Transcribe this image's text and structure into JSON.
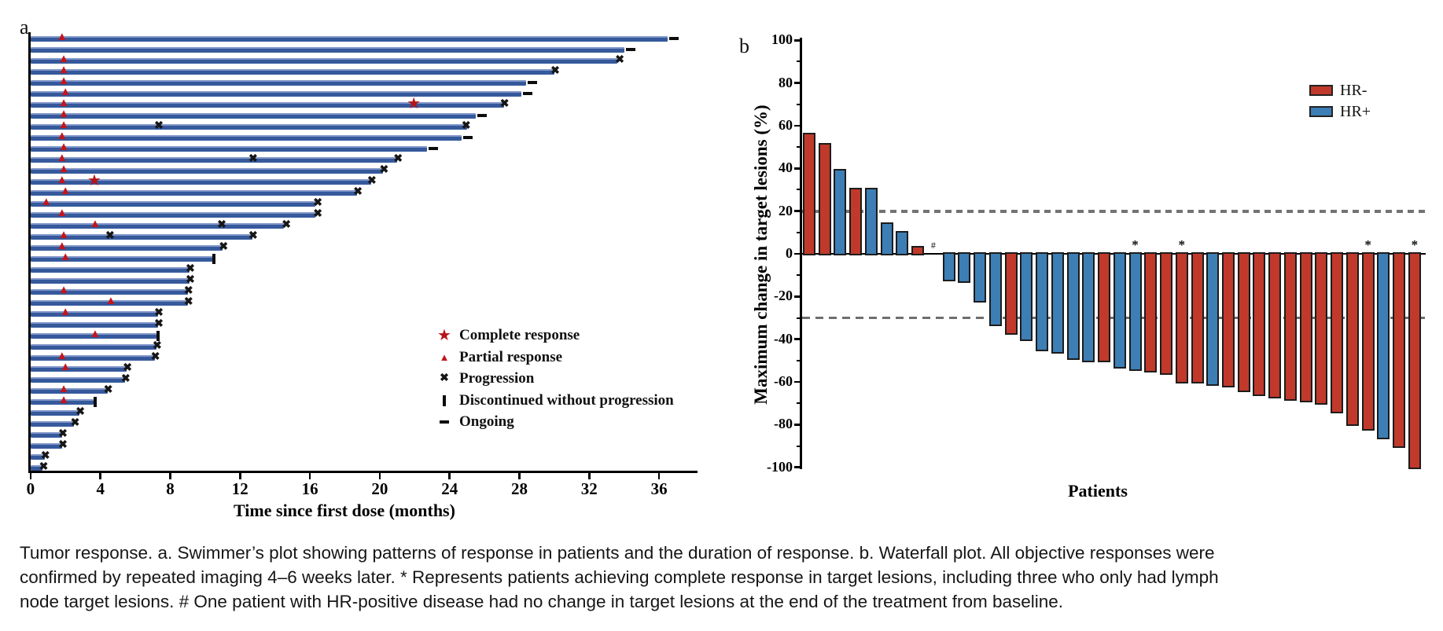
{
  "figure": {
    "panel_a_label": "a",
    "panel_b_label": "b"
  },
  "chart_data": [
    {
      "type": "swimmer",
      "panel": "a",
      "xlabel": "Time since first dose (months)",
      "x_ticks": [
        0,
        4,
        8,
        12,
        16,
        20,
        24,
        28,
        32,
        36
      ],
      "xlim": [
        0,
        38
      ],
      "legend": [
        {
          "symbol": "star",
          "label": "Complete response"
        },
        {
          "symbol": "triangle",
          "label": "Partial response"
        },
        {
          "symbol": "x",
          "label": "Progression"
        },
        {
          "symbol": "bar",
          "label": "Discontinued without progression"
        },
        {
          "symbol": "dash",
          "label": "Ongoing"
        }
      ],
      "patients": [
        {
          "duration": 36.5,
          "triangle": 1.8,
          "ongoing": true
        },
        {
          "duration": 34.0,
          "ongoing": true
        },
        {
          "duration": 33.6,
          "triangle": 1.9,
          "x": [
            33.8
          ]
        },
        {
          "duration": 30.0,
          "triangle": 1.9,
          "x": [
            30.1
          ]
        },
        {
          "duration": 28.4,
          "triangle": 1.9,
          "ongoing": true
        },
        {
          "duration": 28.1,
          "triangle": 2.0,
          "ongoing": true
        },
        {
          "duration": 27.1,
          "triangle": 1.9,
          "star": 22.0,
          "x": [
            27.2
          ]
        },
        {
          "duration": 25.5,
          "triangle": 1.9,
          "ongoing": true
        },
        {
          "duration": 25.0,
          "triangle": 1.9,
          "x": [
            7.4,
            25.0
          ]
        },
        {
          "duration": 24.7,
          "triangle": 1.8,
          "ongoing": true
        },
        {
          "duration": 22.7,
          "triangle": 1.9,
          "ongoing": true
        },
        {
          "duration": 21.0,
          "triangle": 1.8,
          "x": [
            12.8,
            21.1
          ]
        },
        {
          "duration": 20.2,
          "triangle": 1.9,
          "x": [
            20.3
          ]
        },
        {
          "duration": 19.5,
          "triangle": 1.8,
          "star": 3.7,
          "x": [
            19.6
          ]
        },
        {
          "duration": 18.7,
          "triangle": 2.0,
          "x": [
            18.8
          ]
        },
        {
          "duration": 16.3,
          "triangle": 0.9,
          "x": [
            16.5
          ]
        },
        {
          "duration": 16.3,
          "triangle": 1.8,
          "x": [
            16.5
          ]
        },
        {
          "duration": 14.5,
          "triangle": 3.7,
          "x": [
            11.0,
            14.7
          ]
        },
        {
          "duration": 12.7,
          "triangle": 1.9,
          "x": [
            4.6,
            12.8
          ]
        },
        {
          "duration": 11.0,
          "triangle": 1.8,
          "x": [
            11.1
          ]
        },
        {
          "duration": 10.5,
          "triangle": 2.0,
          "discontinued": 10.5
        },
        {
          "duration": 9.1,
          "x": [
            9.2
          ]
        },
        {
          "duration": 9.1,
          "x": [
            9.2
          ]
        },
        {
          "duration": 9.0,
          "triangle": 1.9,
          "x": [
            9.1
          ]
        },
        {
          "duration": 9.0,
          "triangle": 4.6,
          "x": [
            9.1
          ]
        },
        {
          "duration": 7.3,
          "triangle": 2.0,
          "x": [
            7.4
          ]
        },
        {
          "duration": 7.3,
          "x": [
            7.4
          ]
        },
        {
          "duration": 7.2,
          "triangle": 3.7,
          "discontinued": 7.3
        },
        {
          "duration": 7.2,
          "x": [
            7.3
          ]
        },
        {
          "duration": 7.1,
          "triangle": 1.8,
          "x": [
            7.2
          ]
        },
        {
          "duration": 5.5,
          "triangle": 2.0,
          "x": [
            5.6
          ]
        },
        {
          "duration": 5.4,
          "x": [
            5.5
          ]
        },
        {
          "duration": 4.4,
          "triangle": 1.9,
          "x": [
            4.5
          ]
        },
        {
          "duration": 3.6,
          "triangle": 1.9,
          "discontinued": 3.7
        },
        {
          "duration": 2.8,
          "x": [
            2.9
          ]
        },
        {
          "duration": 2.5,
          "x": [
            2.6
          ]
        },
        {
          "duration": 1.8,
          "x": [
            1.9
          ]
        },
        {
          "duration": 1.8,
          "x": [
            1.9
          ]
        },
        {
          "duration": 0.8,
          "x": [
            0.9
          ]
        },
        {
          "duration": 0.7,
          "x": [
            0.8
          ]
        }
      ]
    },
    {
      "type": "bar",
      "panel": "b",
      "xlabel": "Patients",
      "ylabel": "Maximum change in target lesions (%)",
      "ylim": [
        -100,
        100
      ],
      "y_major_ticks": [
        100,
        80,
        60,
        40,
        20,
        0,
        -20,
        -40,
        -60,
        -80,
        -100
      ],
      "y_minor_ticks": [
        90,
        70,
        50,
        30,
        10,
        -10,
        -30,
        -50,
        -70,
        -90
      ],
      "reference_lines": [
        20,
        -30
      ],
      "legend": [
        {
          "label": "HR-",
          "group": "HR-"
        },
        {
          "label": "HR+",
          "group": "HR+"
        }
      ],
      "values": [
        {
          "v": 56,
          "g": "HR-"
        },
        {
          "v": 51,
          "g": "HR-"
        },
        {
          "v": 39,
          "g": "HR+"
        },
        {
          "v": 30,
          "g": "HR-"
        },
        {
          "v": 30,
          "g": "HR+"
        },
        {
          "v": 14,
          "g": "HR+"
        },
        {
          "v": 10,
          "g": "HR+"
        },
        {
          "v": 3,
          "g": "HR-"
        },
        {
          "v": 0,
          "g": "HR+",
          "note": "#"
        },
        {
          "v": -12,
          "g": "HR+"
        },
        {
          "v": -13,
          "g": "HR+"
        },
        {
          "v": -22,
          "g": "HR+"
        },
        {
          "v": -33,
          "g": "HR+"
        },
        {
          "v": -37,
          "g": "HR-"
        },
        {
          "v": -40,
          "g": "HR+"
        },
        {
          "v": -45,
          "g": "HR+"
        },
        {
          "v": -46,
          "g": "HR+"
        },
        {
          "v": -49,
          "g": "HR+"
        },
        {
          "v": -50,
          "g": "HR+"
        },
        {
          "v": -50,
          "g": "HR-"
        },
        {
          "v": -53,
          "g": "HR+"
        },
        {
          "v": -54,
          "g": "HR+",
          "note": "*"
        },
        {
          "v": -55,
          "g": "HR-"
        },
        {
          "v": -56,
          "g": "HR-"
        },
        {
          "v": -60,
          "g": "HR-",
          "note": "*"
        },
        {
          "v": -60,
          "g": "HR-"
        },
        {
          "v": -61,
          "g": "HR+"
        },
        {
          "v": -62,
          "g": "HR-"
        },
        {
          "v": -64,
          "g": "HR-"
        },
        {
          "v": -66,
          "g": "HR-"
        },
        {
          "v": -67,
          "g": "HR-"
        },
        {
          "v": -68,
          "g": "HR-"
        },
        {
          "v": -69,
          "g": "HR-"
        },
        {
          "v": -70,
          "g": "HR-"
        },
        {
          "v": -74,
          "g": "HR-"
        },
        {
          "v": -80,
          "g": "HR-"
        },
        {
          "v": -82,
          "g": "HR-",
          "note": "*"
        },
        {
          "v": -86,
          "g": "HR+"
        },
        {
          "v": -90,
          "g": "HR-"
        },
        {
          "v": -100,
          "g": "HR-",
          "note": "*"
        }
      ]
    }
  ],
  "colors": {
    "swimmer_bar": "#35599b",
    "marker_red": "#c3161c",
    "marker_black": "#161616",
    "hr_negative": "#c0392b",
    "hr_positive": "#3d7eb5",
    "dashed_line": "#737373"
  },
  "caption": {
    "lines": [
      "Tumor response. a. Swimmer’s plot showing patterns of response in patients and the duration of response. b. Waterfall plot. All objective responses were",
      "confirmed by repeated imaging 4–6 weeks later. * Represents patients achieving complete response in target lesions, including three who only had lymph",
      "node target lesions. # One patient with HR-positive disease had no change in target lesions at the end of the treatment from baseline."
    ]
  }
}
